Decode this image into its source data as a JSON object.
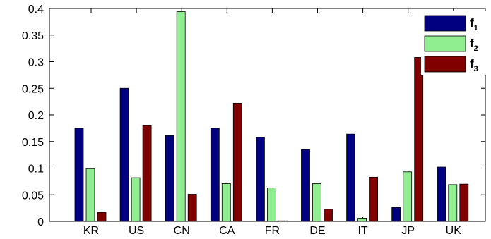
{
  "chart_data": {
    "type": "bar",
    "title": "",
    "xlabel": "",
    "ylabel": "",
    "ylim": [
      0,
      0.4
    ],
    "yticks": [
      "0",
      "0.05",
      "0.1",
      "0.15",
      "0.2",
      "0.25",
      "0.3",
      "0.35",
      "0.4"
    ],
    "grid": false,
    "legend_position": "top-right",
    "categories": [
      "KR",
      "US",
      "CN",
      "CA",
      "FR",
      "DE",
      "IT",
      "JP",
      "UK"
    ],
    "series": [
      {
        "name": "f",
        "subscript": "1",
        "color": "#000080",
        "values": [
          0.175,
          0.25,
          0.161,
          0.175,
          0.158,
          0.135,
          0.164,
          0.026,
          0.102
        ]
      },
      {
        "name": "f",
        "subscript": "2",
        "color": "#90EE90",
        "values": [
          0.099,
          0.082,
          0.394,
          0.071,
          0.063,
          0.071,
          0.006,
          0.093,
          0.069
        ]
      },
      {
        "name": "f",
        "subscript": "3",
        "color": "#800000",
        "values": [
          0.017,
          0.18,
          0.051,
          0.222,
          0.001,
          0.023,
          0.083,
          0.308,
          0.07
        ]
      }
    ]
  }
}
